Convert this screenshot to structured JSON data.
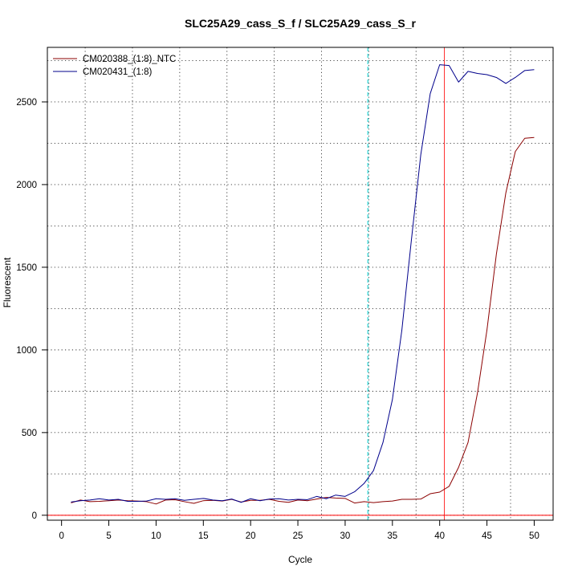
{
  "chart_data": {
    "type": "line",
    "title": "SLC25A29_cass_S_f / SLC25A29_cass_S_r",
    "xlabel": "Cycle",
    "ylabel": "Fluorescent",
    "xlim": [
      -1.5,
      52
    ],
    "ylim": [
      -30,
      2830
    ],
    "xticks": [
      0,
      5,
      10,
      15,
      20,
      25,
      30,
      35,
      40,
      45,
      50
    ],
    "yticks": [
      0,
      500,
      1000,
      1500,
      2000,
      2500
    ],
    "grid": true,
    "grid_x_minor": [
      2.5,
      7.5,
      12.5,
      17.5,
      22.5,
      27.5,
      32.5,
      37.5,
      42.5,
      47.5
    ],
    "grid_y_minor": [
      250,
      750,
      1250,
      1750,
      2250,
      2750
    ],
    "legend_position": "top-left",
    "x": [
      1,
      2,
      3,
      4,
      5,
      6,
      7,
      8,
      9,
      10,
      11,
      12,
      13,
      14,
      15,
      16,
      17,
      18,
      19,
      20,
      21,
      22,
      23,
      24,
      25,
      26,
      27,
      28,
      29,
      30,
      31,
      32,
      33,
      34,
      35,
      36,
      37,
      38,
      39,
      40,
      41,
      42,
      43,
      44,
      45,
      46,
      47,
      48,
      49,
      50
    ],
    "series": [
      {
        "name": "CM020388_(1:8)_NTC",
        "color": "#8b0000",
        "values": [
          75,
          92,
          82,
          84,
          88,
          92,
          88,
          86,
          82,
          68,
          92,
          94,
          82,
          72,
          88,
          90,
          86,
          96,
          80,
          90,
          90,
          96,
          84,
          78,
          92,
          88,
          98,
          108,
          104,
          102,
          74,
          82,
          76,
          82,
          86,
          96,
          96,
          98,
          130,
          140,
          175,
          290,
          440,
          740,
          1120,
          1580,
          1950,
          2200,
          2280,
          2285
        ]
      },
      {
        "name": "CM020431_(1:8)",
        "color": "#00008b",
        "values": [
          80,
          88,
          92,
          100,
          92,
          96,
          84,
          84,
          86,
          100,
          96,
          100,
          90,
          96,
          102,
          92,
          88,
          98,
          78,
          100,
          88,
          98,
          100,
          92,
          96,
          94,
          114,
          100,
          122,
          114,
          142,
          192,
          270,
          440,
          700,
          1120,
          1660,
          2180,
          2550,
          2725,
          2720,
          2620,
          2685,
          2672,
          2665,
          2648,
          2612,
          2648,
          2690,
          2695
        ]
      }
    ],
    "reference_lines": {
      "vertical_cyan_x": 32.4,
      "vertical_red_x": 40.5,
      "horizontal_red_y": 0,
      "cyan_color": "#00cdcd",
      "red_color": "#ff0000"
    }
  }
}
